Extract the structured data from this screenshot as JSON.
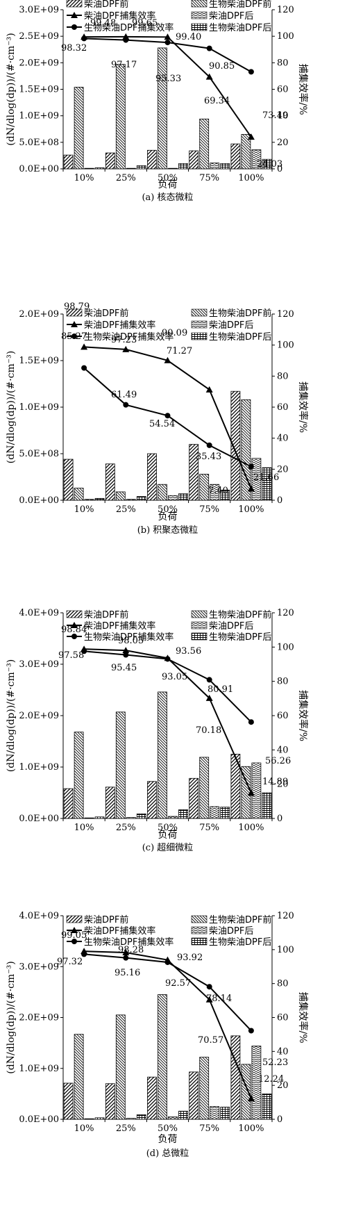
{
  "legend": {
    "diesel_before": "柴油DPF前",
    "bio_before": "生物柴油DPF前",
    "diesel_eff": "柴油DPF捕集效率",
    "diesel_after": "柴油DPF后",
    "bio_eff": "生物柴油DPF捕集效率",
    "bio_after": "生物柴油DPF后"
  },
  "chart_data": [
    {
      "type": "bar",
      "caption": "(a) 核态微粒",
      "xlabel": "负荷",
      "ylabel": "(dN/dlog(dp))/(#·cm⁻³)",
      "y2label": "捕集效率/%",
      "categories": [
        "10%",
        "25%",
        "50%",
        "75%",
        "100%"
      ],
      "ylim": [
        0,
        3000000000
      ],
      "yticks": [
        "0.0E+00",
        "5.0E+08",
        "1.0E+09",
        "1.5E+09",
        "2.0E+09",
        "2.5E+09",
        "3.0E+09"
      ],
      "y2lim": [
        0,
        120
      ],
      "y2ticks": [
        "0",
        "20",
        "40",
        "60",
        "80",
        "100",
        "120"
      ],
      "series": [
        {
          "name": "柴油DPF前",
          "type": "bar",
          "values": [
            260000000,
            300000000,
            350000000,
            340000000,
            470000000
          ]
        },
        {
          "name": "生物柴油DPF前",
          "type": "bar",
          "values": [
            1540000000,
            1970000000,
            2280000000,
            940000000,
            650000000
          ]
        },
        {
          "name": "柴油DPF后",
          "type": "bar",
          "values": [
            5000000,
            5000000,
            5000000,
            110000000,
            360000000
          ]
        },
        {
          "name": "生物柴油DPF后",
          "type": "bar",
          "values": [
            20000000,
            60000000,
            100000000,
            100000000,
            180000000
          ]
        },
        {
          "name": "柴油DPF捕集效率",
          "type": "line",
          "axis": "right",
          "values": [
            99.48,
            99.65,
            99.4,
            69.34,
            24.03
          ]
        },
        {
          "name": "生物柴油DPF捕集效率",
          "type": "line",
          "axis": "right",
          "values": [
            98.32,
            97.17,
            95.33,
            90.85,
            73.19
          ]
        }
      ],
      "labels": [
        {
          "text": "99.48"
        },
        {
          "text": "99.65"
        },
        {
          "text": "99.40"
        },
        {
          "text": "98.32"
        },
        {
          "text": "97.17"
        },
        {
          "text": "95.33"
        },
        {
          "text": "90.85"
        },
        {
          "text": "69.34"
        },
        {
          "text": "73.19"
        },
        {
          "text": "24.03"
        }
      ]
    },
    {
      "type": "bar",
      "caption": "(b) 积聚态微粒",
      "xlabel": "负荷",
      "ylabel": "(dN/dlog(dp))/(#·cm⁻³)",
      "y2label": "捕集效率/%",
      "categories": [
        "10%",
        "25%",
        "50%",
        "75%",
        "100%"
      ],
      "ylim": [
        0,
        2000000000
      ],
      "yticks": [
        "0.0E+00",
        "5.0E+08",
        "1.0E+09",
        "1.5E+09",
        "2.0E+09"
      ],
      "y2lim": [
        0,
        120
      ],
      "y2ticks": [
        "0",
        "20",
        "40",
        "60",
        "80",
        "100",
        "120"
      ],
      "series": [
        {
          "name": "柴油DPF前",
          "type": "bar",
          "values": [
            440000000,
            390000000,
            500000000,
            600000000,
            1170000000
          ]
        },
        {
          "name": "生物柴油DPF前",
          "type": "bar",
          "values": [
            130000000,
            90000000,
            170000000,
            280000000,
            1080000000
          ]
        },
        {
          "name": "柴油DPF后",
          "type": "bar",
          "values": [
            10000000,
            10000000,
            50000000,
            170000000,
            450000000
          ]
        },
        {
          "name": "生物柴油DPF后",
          "type": "bar",
          "values": [
            20000000,
            40000000,
            70000000,
            110000000,
            350000000
          ]
        },
        {
          "name": "柴油DPF捕集效率",
          "type": "line",
          "axis": "right",
          "values": [
            98.79,
            97.23,
            90.09,
            71.27,
            7.4
          ]
        },
        {
          "name": "生物柴油DPF捕集效率",
          "type": "line",
          "axis": "right",
          "values": [
            85.27,
            61.49,
            54.54,
            35.43,
            21.66
          ]
        }
      ],
      "labels": [
        {
          "text": "98.79"
        },
        {
          "text": "85.27"
        },
        {
          "text": "97.23"
        },
        {
          "text": "90.09"
        },
        {
          "text": "61.49"
        },
        {
          "text": "54.54"
        },
        {
          "text": "71.27"
        },
        {
          "text": "35.43"
        },
        {
          "text": "7.40"
        },
        {
          "text": "21.66"
        }
      ]
    },
    {
      "type": "bar",
      "caption": "(c) 超细微粒",
      "xlabel": "负荷",
      "ylabel": "(dN/dlog(dp))/(#·cm⁻³)",
      "y2label": "捕集效率/%",
      "categories": [
        "10%",
        "25%",
        "50%",
        "75%",
        "100%"
      ],
      "ylim": [
        0,
        4000000000
      ],
      "yticks": [
        "0.0E+00",
        "1.0E+09",
        "2.0E+09",
        "3.0E+09",
        "4.0E+09"
      ],
      "y2lim": [
        0,
        120
      ],
      "y2ticks": [
        "0",
        "20",
        "40",
        "60",
        "80",
        "100",
        "120"
      ],
      "series": [
        {
          "name": "柴油DPF前",
          "type": "bar",
          "values": [
            580000000,
            610000000,
            720000000,
            780000000,
            1250000000
          ]
        },
        {
          "name": "生物柴油DPF前",
          "type": "bar",
          "values": [
            1680000000,
            2070000000,
            2460000000,
            1190000000,
            1010000000
          ]
        },
        {
          "name": "柴油DPF后",
          "type": "bar",
          "values": [
            10000000,
            20000000,
            40000000,
            230000000,
            1080000000
          ]
        },
        {
          "name": "生物柴油DPF后",
          "type": "bar",
          "values": [
            30000000,
            90000000,
            170000000,
            220000000,
            500000000
          ]
        },
        {
          "name": "柴油DPF捕集效率",
          "type": "line",
          "axis": "right",
          "values": [
            98.84,
            98.05,
            93.56,
            70.18,
            14.89
          ]
        },
        {
          "name": "生物柴油DPF捕集效率",
          "type": "line",
          "axis": "right",
          "values": [
            97.58,
            95.45,
            93.05,
            80.91,
            56.26
          ]
        }
      ],
      "labels": [
        {
          "text": "98.84"
        },
        {
          "text": "97.58"
        },
        {
          "text": "98.05"
        },
        {
          "text": "95.45"
        },
        {
          "text": "93.56"
        },
        {
          "text": "93.05"
        },
        {
          "text": "80.91"
        },
        {
          "text": "70.18"
        },
        {
          "text": "56.26"
        },
        {
          "text": "14.89"
        }
      ]
    },
    {
      "type": "bar",
      "caption": "(d) 总微粒",
      "xlabel": "负荷",
      "ylabel": "(dN/dlog(dp))/(#·cm⁻³)",
      "y2label": "捕集效率/%",
      "categories": [
        "10%",
        "25%",
        "50%",
        "75%",
        "100%"
      ],
      "ylim": [
        0,
        4000000000
      ],
      "yticks": [
        "0.0E+00",
        "1.0E+09",
        "2.0E+09",
        "3.0E+09",
        "4.0E+09"
      ],
      "y2lim": [
        0,
        120
      ],
      "y2ticks": [
        "0",
        "20",
        "40",
        "60",
        "80",
        "100",
        "120"
      ],
      "series": [
        {
          "name": "柴油DPF前",
          "type": "bar",
          "values": [
            710000000,
            700000000,
            830000000,
            930000000,
            1640000000
          ]
        },
        {
          "name": "生物柴油DPF前",
          "type": "bar",
          "values": [
            1670000000,
            2050000000,
            2450000000,
            1220000000,
            1080000000
          ]
        },
        {
          "name": "柴油DPF后",
          "type": "bar",
          "values": [
            10000000,
            20000000,
            50000000,
            250000000,
            1440000000
          ]
        },
        {
          "name": "生物柴油DPF后",
          "type": "bar",
          "values": [
            30000000,
            90000000,
            160000000,
            240000000,
            500000000
          ]
        },
        {
          "name": "柴油DPF捕集效率",
          "type": "line",
          "axis": "right",
          "values": [
            99.05,
            98.28,
            93.92,
            70.57,
            12.24
          ]
        },
        {
          "name": "生物柴油DPF捕集效率",
          "type": "line",
          "axis": "right",
          "values": [
            97.32,
            95.16,
            92.57,
            78.14,
            52.23
          ]
        }
      ],
      "labels": [
        {
          "text": "99.05"
        },
        {
          "text": "97.32"
        },
        {
          "text": "98.28"
        },
        {
          "text": "95.16"
        },
        {
          "text": "93.92"
        },
        {
          "text": "92.57"
        },
        {
          "text": "78.14"
        },
        {
          "text": "70.57"
        },
        {
          "text": "52.23"
        },
        {
          "text": "12.24"
        }
      ]
    }
  ]
}
